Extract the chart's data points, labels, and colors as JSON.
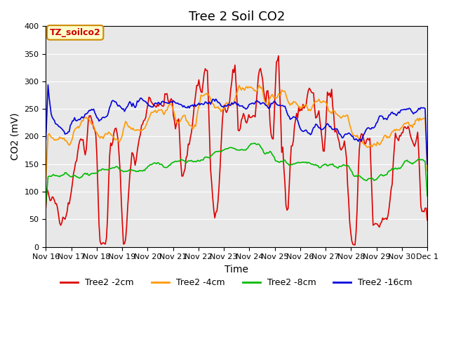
{
  "title": "Tree 2 Soil CO2",
  "ylabel": "CO2 (mV)",
  "xlabel": "Time",
  "ylim": [
    0,
    400
  ],
  "xlim": [
    0,
    15
  ],
  "x_tick_labels": [
    "Nov 16",
    "Nov 17",
    "Nov 18",
    "Nov 19",
    "Nov 20",
    "Nov 21",
    "Nov 22",
    "Nov 23",
    "Nov 24",
    "Nov 25",
    "Nov 26",
    "Nov 27",
    "Nov 28",
    "Nov 29",
    "Nov 30",
    "Dec 1"
  ],
  "annotation": "TZ_soilco2",
  "annotation_bg": "#ffffcc",
  "annotation_border": "#cc8800",
  "line_colors": {
    "2cm": "#dd0000",
    "4cm": "#ff9900",
    "8cm": "#00bb00",
    "16cm": "#0000dd"
  },
  "legend_labels": [
    "Tree2 -2cm",
    "Tree2 -4cm",
    "Tree2 -8cm",
    "Tree2 -16cm"
  ],
  "plot_bg": "#e8e8e8",
  "linewidth": 1.2,
  "title_fontsize": 13,
  "axis_fontsize": 10,
  "tick_fontsize": 8
}
